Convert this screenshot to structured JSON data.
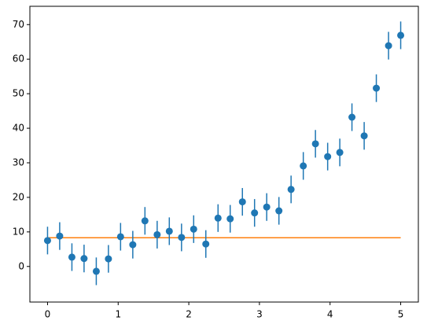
{
  "chart_data": {
    "type": "errorbar",
    "x": [
      0,
      0.172,
      0.345,
      0.517,
      0.69,
      0.862,
      1.034,
      1.207,
      1.379,
      1.552,
      1.724,
      1.897,
      2.069,
      2.241,
      2.414,
      2.586,
      2.759,
      2.931,
      3.103,
      3.276,
      3.448,
      3.621,
      3.793,
      3.966,
      4.138,
      4.31,
      4.483,
      4.655,
      4.828,
      5
    ],
    "series": [
      {
        "color": "#1f77b4",
        "values": [
          7.5,
          8.8,
          2.7,
          2.3,
          -1.4,
          2.2,
          8.6,
          6.3,
          13.2,
          9.2,
          10.2,
          8.4,
          10.8,
          6.5,
          14.0,
          13.8,
          18.7,
          15.5,
          17.2,
          16.1,
          22.3,
          29.1,
          35.5,
          31.8,
          33.0,
          43.2,
          37.8,
          51.6,
          63.9,
          66.9
        ],
        "errors": [
          4,
          4,
          4,
          4,
          4,
          4,
          4,
          4,
          4,
          4,
          4,
          4,
          4,
          4,
          4,
          4,
          4,
          4,
          4,
          4,
          4,
          4,
          4,
          4,
          4,
          4,
          4,
          4,
          4,
          4
        ]
      },
      {
        "color": "#ff7f0e",
        "x": [
          0,
          5
        ],
        "values": [
          8.3,
          8.3
        ]
      }
    ],
    "xlim": [
      -0.25,
      5.25
    ],
    "xticks": [
      0,
      1,
      2,
      3,
      4,
      5
    ],
    "ylim": [
      -10.3,
      75.3
    ],
    "yticks": [
      0,
      10,
      20,
      30,
      40,
      50,
      60,
      70
    ]
  }
}
